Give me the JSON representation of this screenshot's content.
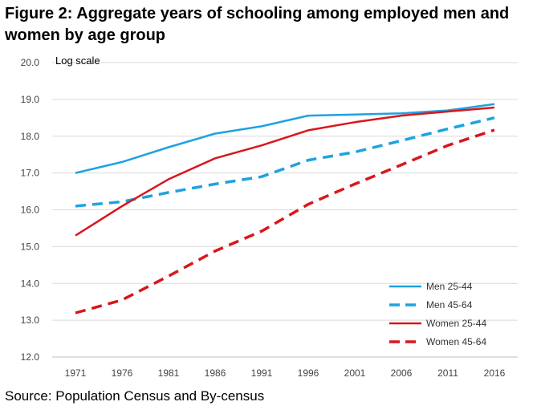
{
  "title": "Figure 2: Aggregate years of schooling among employed men and women by age group",
  "source": "Source: Population Census and By-census",
  "chart_data": {
    "type": "line",
    "ylabel": "Log scale",
    "log_scale": true,
    "ylim": [
      12.0,
      20.0
    ],
    "yticks": [
      "12.0",
      "13.0",
      "14.0",
      "15.0",
      "16.0",
      "17.0",
      "18.0",
      "19.0",
      "20.0"
    ],
    "x": [
      "1971",
      "1976",
      "1981",
      "1986",
      "1991",
      "1996",
      "2001",
      "2006",
      "2011",
      "2016"
    ],
    "grid": "horizontal",
    "legend_position": "bottom-right",
    "series": [
      {
        "name": "Men 25-44",
        "color": "#1ea2e0",
        "dashed": false,
        "values": [
          17.0,
          17.3,
          17.7,
          18.07,
          18.27,
          18.56,
          18.59,
          18.62,
          18.7,
          18.87
        ]
      },
      {
        "name": "Men 45-64",
        "color": "#1ea2e0",
        "dashed": true,
        "values": [
          16.1,
          16.22,
          16.47,
          16.7,
          16.9,
          17.35,
          17.57,
          17.88,
          18.2,
          18.5
        ]
      },
      {
        "name": "Women 25-44",
        "color": "#d9161c",
        "dashed": false,
        "values": [
          15.3,
          16.1,
          16.83,
          17.4,
          17.75,
          18.16,
          18.38,
          18.56,
          18.67,
          18.78
        ]
      },
      {
        "name": "Women 45-64",
        "color": "#d9161c",
        "dashed": true,
        "values": [
          13.2,
          13.55,
          14.2,
          14.88,
          15.42,
          16.15,
          16.7,
          17.22,
          17.75,
          18.17
        ]
      }
    ]
  }
}
